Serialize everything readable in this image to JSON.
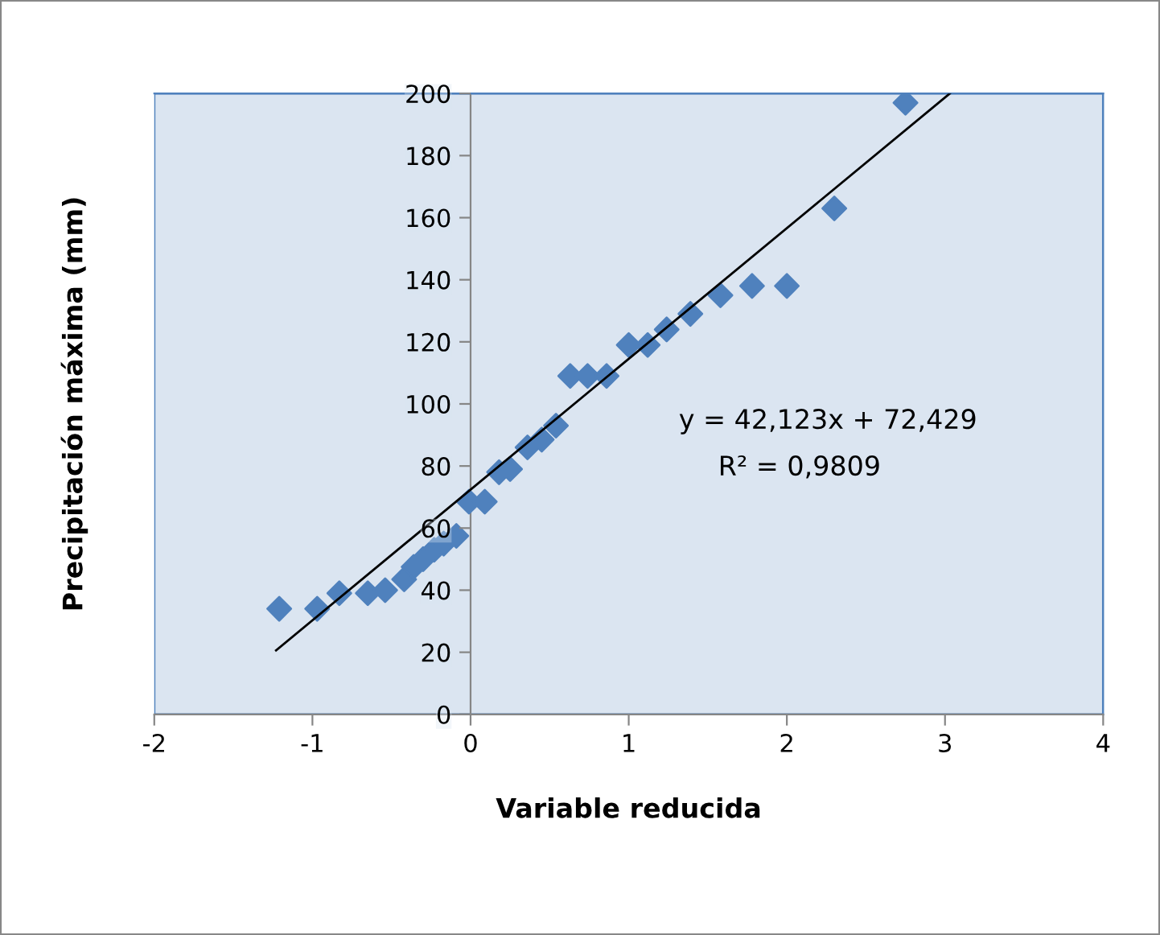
{
  "chart_data": {
    "type": "scatter",
    "xlabel": "Variable reducida",
    "ylabel": "Precipitación máxima (mm)",
    "xlim": [
      -2,
      4
    ],
    "xticks": [
      -2,
      -1,
      0,
      1,
      2,
      3,
      4
    ],
    "ylim": [
      0,
      200
    ],
    "yticks": [
      0,
      20,
      40,
      60,
      80,
      100,
      120,
      140,
      160,
      180,
      200
    ],
    "grid": false,
    "legend": false,
    "marker": "diamond",
    "series": [
      {
        "color": "#4f81bd",
        "x": [
          -1.21,
          -0.97,
          -0.83,
          -0.65,
          -0.54,
          -0.42,
          -0.36,
          -0.3,
          -0.23,
          -0.17,
          -0.09,
          -0.01,
          0.09,
          0.18,
          0.25,
          0.36,
          0.45,
          0.54,
          0.63,
          0.74,
          0.86,
          1.0,
          1.12,
          1.24,
          1.39,
          1.58,
          1.78,
          2.0,
          2.3,
          2.75
        ],
        "values": [
          34,
          34,
          39,
          39,
          40,
          43.5,
          47.5,
          50,
          53,
          55,
          57.5,
          68.5,
          68.5,
          78,
          79,
          86,
          88.5,
          93,
          109,
          109,
          109,
          119,
          119,
          124,
          129,
          135,
          138,
          138,
          163,
          197
        ]
      },
      {
        "type": "line",
        "color": "#000000",
        "x": [
          -1.23,
          3.03
        ],
        "values": [
          20.6,
          200
        ],
        "line_style": "solid",
        "marker": "none"
      }
    ],
    "annotations": [
      "y = 42,123x + 72,429",
      "R² = 0,9809"
    ]
  }
}
